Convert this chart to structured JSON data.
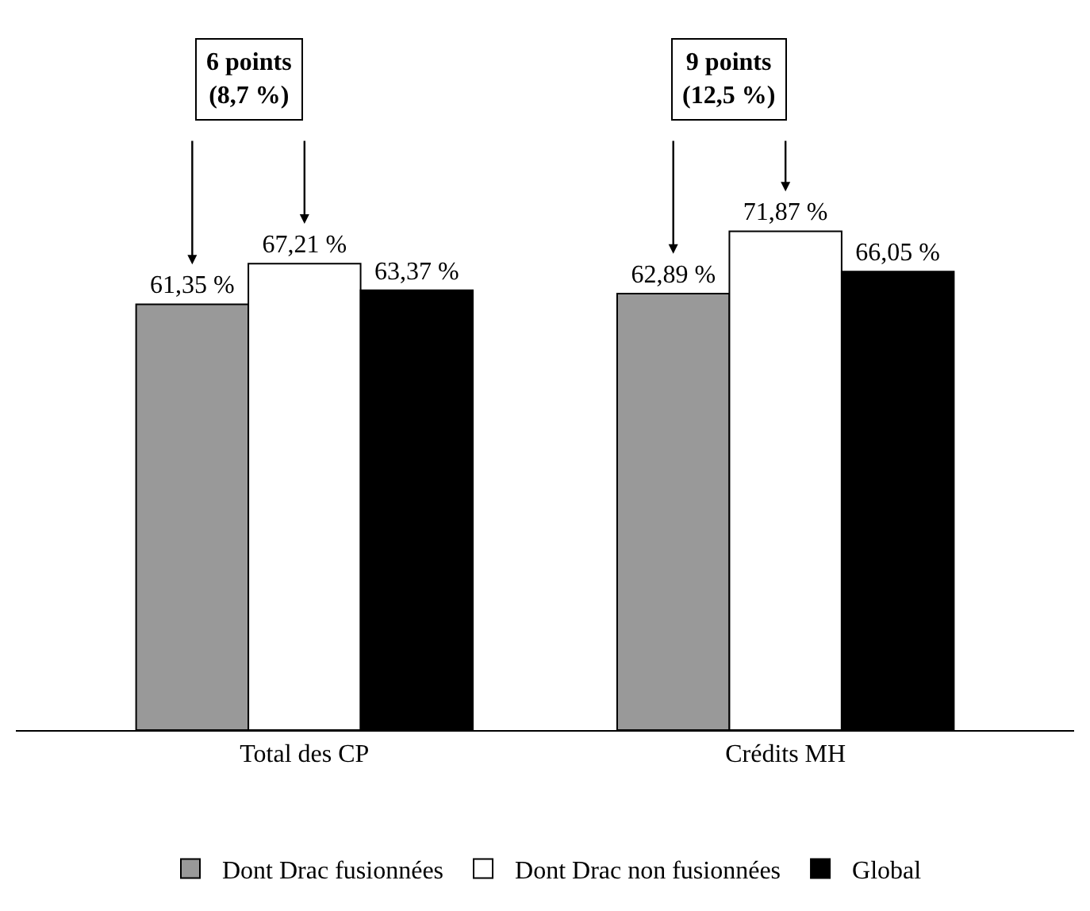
{
  "chart_data": {
    "type": "bar",
    "categories": [
      "Total des CP",
      "Crédits MH"
    ],
    "series": [
      {
        "name": "Dont Drac fusionnées",
        "color": "#999999",
        "values": [
          61.35,
          62.89
        ],
        "value_labels": [
          "61,35 %",
          "62,89 %"
        ]
      },
      {
        "name": "Dont Drac non fusionnées",
        "color": "#ffffff",
        "values": [
          67.21,
          71.87
        ],
        "value_labels": [
          "67,21 %",
          "71,87 %"
        ]
      },
      {
        "name": "Global",
        "color": "#000000",
        "values": [
          63.37,
          66.05
        ],
        "value_labels": [
          "63,37 %",
          "66,05 %"
        ]
      }
    ],
    "annotations": [
      "6 points\n(8,7 %)",
      "9 points\n(12,5 %)"
    ],
    "tick_labels": "x",
    "legend": "bottom"
  }
}
